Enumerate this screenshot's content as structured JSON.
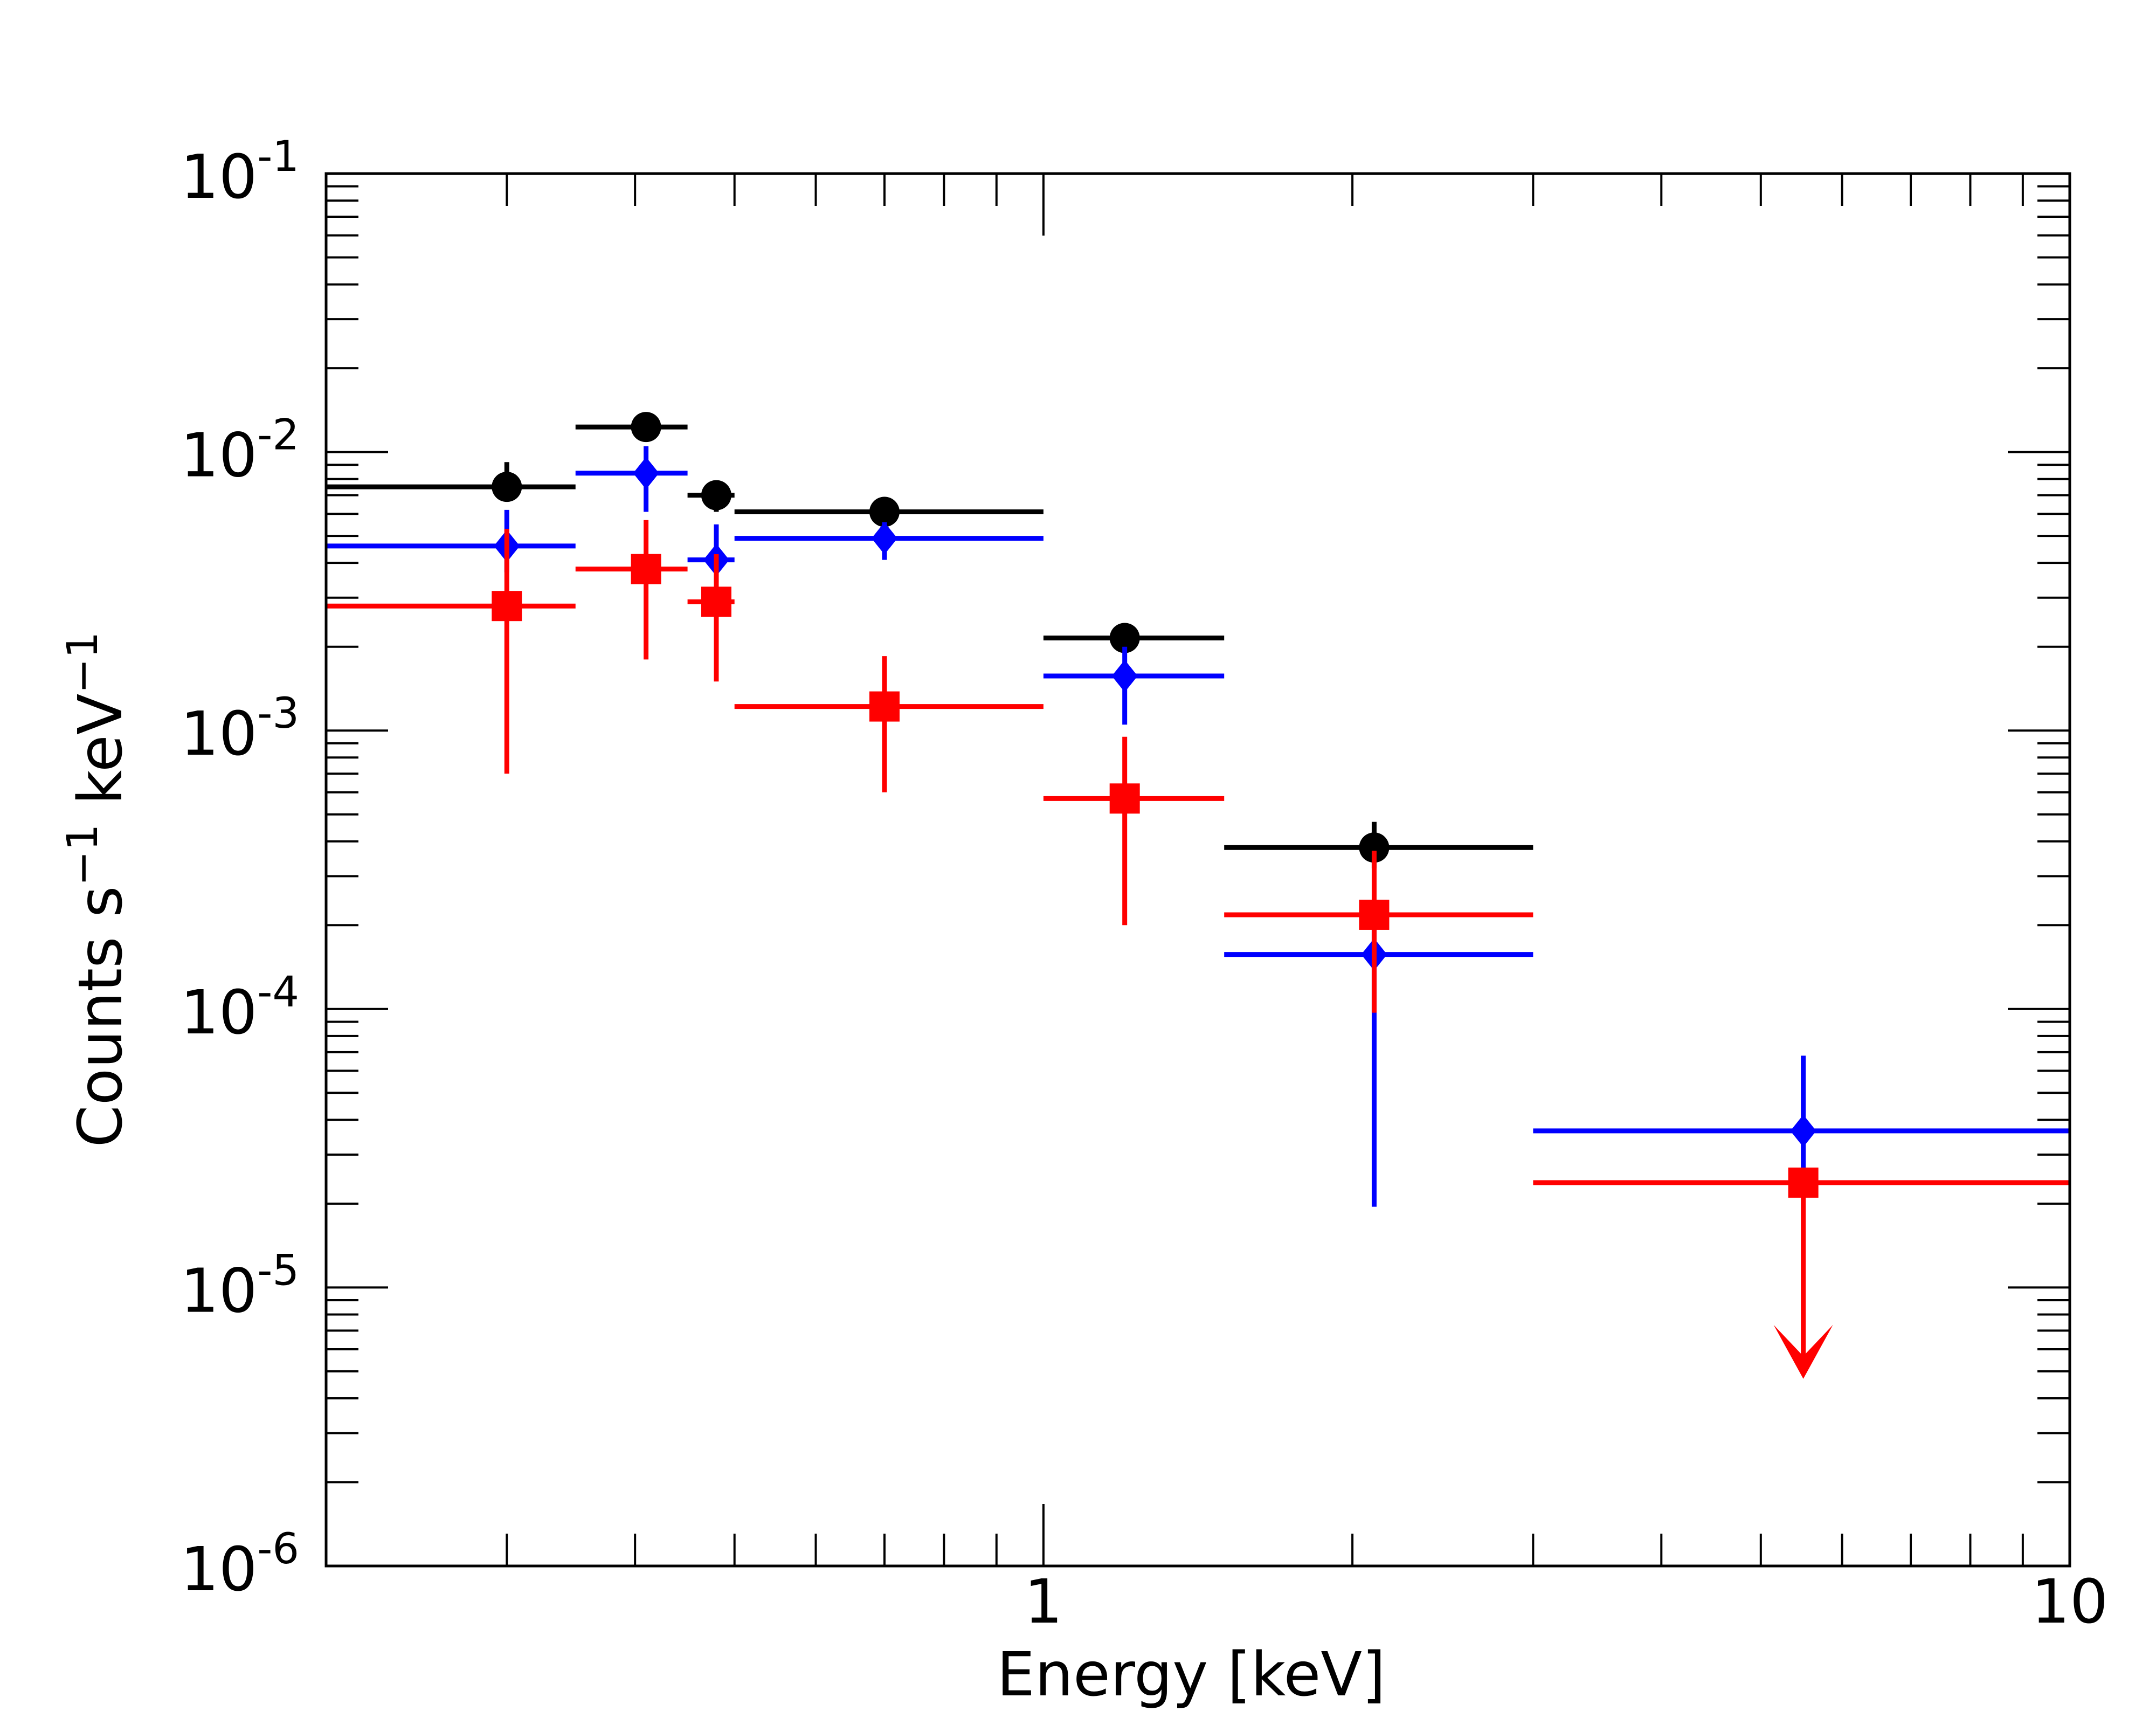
{
  "chart_data": {
    "type": "scatter",
    "xscale": "log",
    "yscale": "log",
    "xlim": [
      0.2,
      10
    ],
    "ylim": [
      1e-06,
      0.1
    ],
    "xlabel": "Energy  [keV]",
    "ylabel_main": "Counts s",
    "ylabel_sup1": "−1",
    "ylabel_mid": " keV",
    "ylabel_sup2": "−1",
    "xticks": [
      {
        "value": 1,
        "label": "1"
      },
      {
        "value": 10,
        "label": "10"
      }
    ],
    "yticks": [
      {
        "value": 0.1,
        "base": "10",
        "exp": "-1"
      },
      {
        "value": 0.01,
        "base": "10",
        "exp": "-2"
      },
      {
        "value": 0.001,
        "base": "10",
        "exp": "-3"
      },
      {
        "value": 0.0001,
        "base": "10",
        "exp": "-4"
      },
      {
        "value": 1e-05,
        "base": "10",
        "exp": "-5"
      },
      {
        "value": 1e-06,
        "base": "10",
        "exp": "-6"
      }
    ],
    "series": [
      {
        "name": "black",
        "color": "#000000",
        "marker": "circle",
        "points": [
          {
            "x": 0.3,
            "xlo": 0.2,
            "xhi": 0.35,
            "y": 0.0075,
            "ylo": 0.0068,
            "yhi": 0.0092
          },
          {
            "x": 0.41,
            "xlo": 0.35,
            "xhi": 0.45,
            "y": 0.0123,
            "ylo": 0.0113,
            "yhi": 0.0133
          },
          {
            "x": 0.48,
            "xlo": 0.45,
            "xhi": 0.5,
            "y": 0.007,
            "ylo": 0.0061,
            "yhi": 0.0078
          },
          {
            "x": 0.7,
            "xlo": 0.5,
            "xhi": 1.0,
            "y": 0.0061,
            "ylo": 0.0056,
            "yhi": 0.0066
          },
          {
            "x": 1.2,
            "xlo": 1.0,
            "xhi": 1.5,
            "y": 0.00215,
            "ylo": 0.00195,
            "yhi": 0.00235
          },
          {
            "x": 2.1,
            "xlo": 1.5,
            "xhi": 3.0,
            "y": 0.00038,
            "ylo": 0.00032,
            "yhi": 0.00047
          }
        ]
      },
      {
        "name": "blue",
        "color": "#0000ff",
        "marker": "diamond",
        "points": [
          {
            "x": 0.3,
            "xlo": 0.2,
            "xhi": 0.35,
            "y": 0.0046,
            "ylo": 0.0037,
            "yhi": 0.0062
          },
          {
            "x": 0.41,
            "xlo": 0.35,
            "xhi": 0.45,
            "y": 0.0084,
            "ylo": 0.0061,
            "yhi": 0.0105
          },
          {
            "x": 0.48,
            "xlo": 0.45,
            "xhi": 0.5,
            "y": 0.0041,
            "ylo": 0.0034,
            "yhi": 0.0055
          },
          {
            "x": 0.7,
            "xlo": 0.5,
            "xhi": 1.0,
            "y": 0.0049,
            "ylo": 0.0041,
            "yhi": 0.0056
          },
          {
            "x": 1.2,
            "xlo": 1.0,
            "xhi": 1.5,
            "y": 0.00157,
            "ylo": 0.00105,
            "yhi": 0.002
          },
          {
            "x": 2.1,
            "xlo": 1.5,
            "xhi": 3.0,
            "y": 0.000157,
            "ylo": 1.95e-05,
            "yhi": 0.00023
          },
          {
            "x": 5.5,
            "xlo": 3.0,
            "xhi": 10.0,
            "y": 3.65e-05,
            "ylo": 2.3e-05,
            "yhi": 6.8e-05
          }
        ]
      },
      {
        "name": "red",
        "color": "#ff0000",
        "marker": "square",
        "points": [
          {
            "x": 0.3,
            "xlo": 0.2,
            "xhi": 0.35,
            "y": 0.0028,
            "ylo": 0.0007,
            "yhi": 0.0053
          },
          {
            "x": 0.41,
            "xlo": 0.35,
            "xhi": 0.45,
            "y": 0.0038,
            "ylo": 0.0018,
            "yhi": 0.0057
          },
          {
            "x": 0.48,
            "xlo": 0.45,
            "xhi": 0.5,
            "y": 0.0029,
            "ylo": 0.0015,
            "yhi": 0.0043
          },
          {
            "x": 0.7,
            "xlo": 0.5,
            "xhi": 1.0,
            "y": 0.00122,
            "ylo": 0.0006,
            "yhi": 0.00185
          },
          {
            "x": 1.2,
            "xlo": 1.0,
            "xhi": 1.5,
            "y": 0.00057,
            "ylo": 0.0002,
            "yhi": 0.00095
          },
          {
            "x": 2.1,
            "xlo": 1.5,
            "xhi": 3.0,
            "y": 0.000218,
            "ylo": 9.7e-05,
            "yhi": 0.00037
          }
        ],
        "upper_limits": [
          {
            "x": 5.5,
            "xlo": 3.0,
            "xhi": 10.0,
            "y": 2.38e-05,
            "arrow_to": 4.7e-06
          }
        ]
      }
    ]
  }
}
